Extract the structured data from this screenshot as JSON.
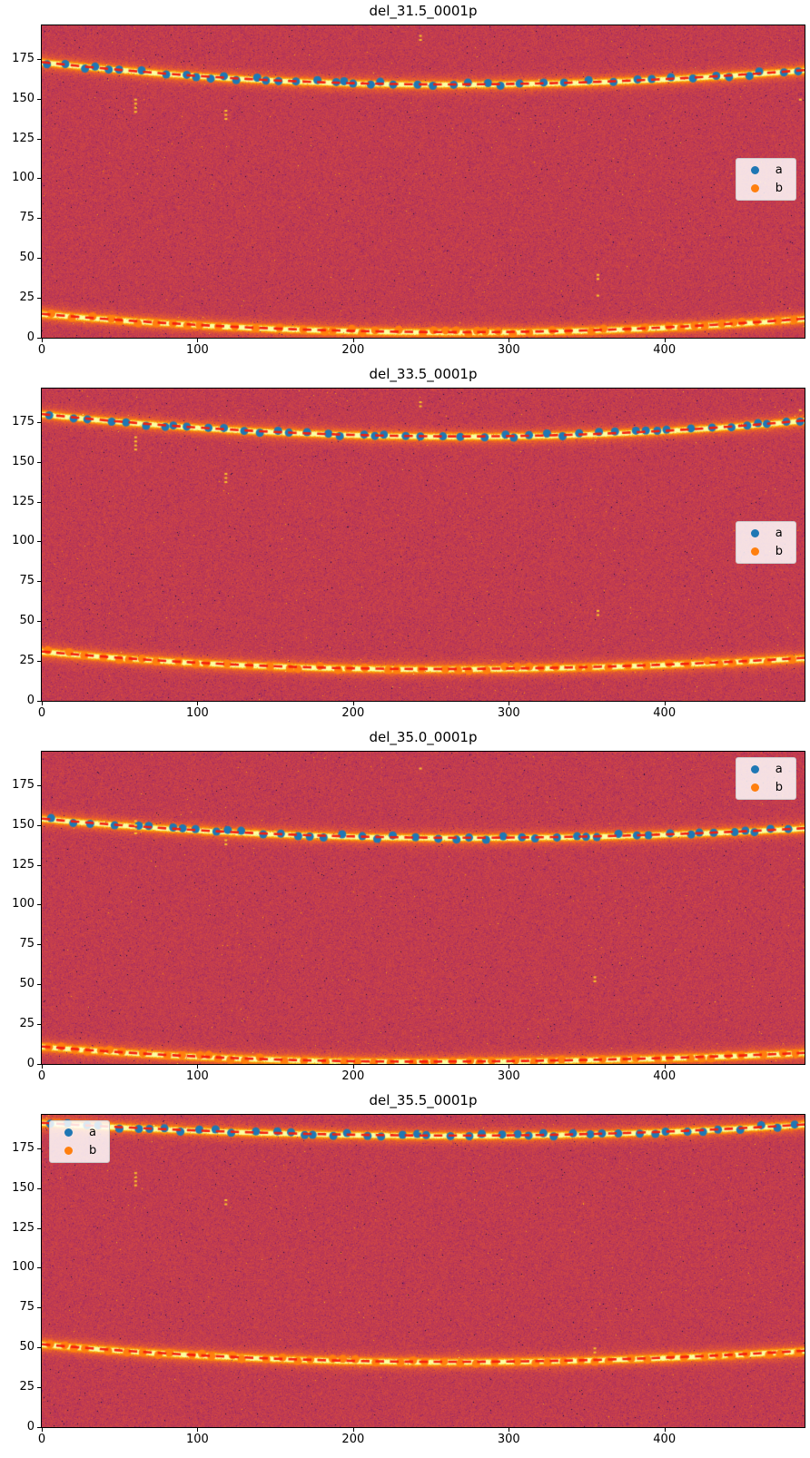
{
  "page": {
    "background": "#ffffff"
  },
  "colors": {
    "series_a": "#1f77b4",
    "series_b": "#ff7f0e",
    "dash_line": "#f41e0e",
    "background_base_inferno_t": 0.52,
    "background_base": "#bc3754",
    "hot_pixel": "#fcc32a",
    "legend_bg": "rgba(255,255,255,0.84)",
    "legend_border": "#cccccc",
    "axis_color": "#000000"
  },
  "legend": {
    "entries": [
      {
        "label": "a",
        "color": "#1f77b4"
      },
      {
        "label": "b",
        "color": "#ff7f0e"
      }
    ]
  },
  "chart_data": {
    "type": "scatter",
    "xlim": [
      0,
      490
    ],
    "ylim": [
      0,
      196
    ],
    "x_ticks": [
      "0",
      "100",
      "200",
      "300",
      "400"
    ],
    "x_tick_values": [
      0,
      100,
      200,
      300,
      400
    ],
    "y_ticks": [
      "0",
      "25",
      "50",
      "75",
      "100",
      "125",
      "150",
      "175"
    ],
    "y_tick_values": [
      0,
      25,
      50,
      75,
      100,
      125,
      150,
      175
    ],
    "grid": false,
    "scatter": {
      "x_start": 3,
      "x_end": 488,
      "step_min": 5,
      "step_max": 16,
      "y_jitter": 1.3,
      "radius": 4.5
    },
    "plots": [
      {
        "title": "del_31.5_0001p",
        "legend_loc": "right",
        "seed": 11,
        "series": [
          {
            "name": "a",
            "color": "#1f77b4",
            "curve": {
              "left": 173,
              "vertex_x": 260,
              "vertex_y": 159,
              "right": 168
            }
          },
          {
            "name": "b",
            "color": "#ff7f0e",
            "curve": {
              "left": 15,
              "vertex_x": 270,
              "vertex_y": 3.5,
              "right": 12
            }
          }
        ],
        "hot_spots": [
          [
            60,
            150,
            4
          ],
          [
            118,
            143,
            3
          ],
          [
            243,
            190,
            2
          ],
          [
            357,
            40,
            2
          ],
          [
            357,
            27,
            1
          ],
          [
            487,
            150,
            1
          ]
        ]
      },
      {
        "title": "del_33.5_0001p",
        "legend_loc": "right",
        "seed": 22,
        "series": [
          {
            "name": "a",
            "color": "#1f77b4",
            "curve": {
              "left": 180,
              "vertex_x": 270,
              "vertex_y": 166,
              "right": 176
            }
          },
          {
            "name": "b",
            "color": "#ff7f0e",
            "curve": {
              "left": 31,
              "vertex_x": 250,
              "vertex_y": 20,
              "right": 27
            }
          }
        ],
        "hot_spots": [
          [
            60,
            166,
            4
          ],
          [
            118,
            143,
            3
          ],
          [
            243,
            188,
            2
          ],
          [
            357,
            57,
            2
          ],
          [
            487,
            183,
            1
          ]
        ]
      },
      {
        "title": "del_35.0_0001p",
        "legend_loc": "upper-right",
        "seed": 33,
        "series": [
          {
            "name": "a",
            "color": "#1f77b4",
            "curve": {
              "left": 154,
              "vertex_x": 270,
              "vertex_y": 142,
              "right": 148
            }
          },
          {
            "name": "b",
            "color": "#ff7f0e",
            "curve": {
              "left": 11,
              "vertex_x": 240,
              "vertex_y": 1.5,
              "right": 7
            }
          }
        ],
        "hot_spots": [
          [
            60,
            153,
            4
          ],
          [
            118,
            141,
            2
          ],
          [
            355,
            55,
            2
          ],
          [
            243,
            186,
            1
          ]
        ]
      },
      {
        "title": "del_35.5_0001p",
        "legend_loc": "upper-left",
        "seed": 44,
        "series": [
          {
            "name": "a",
            "color": "#1f77b4",
            "curve": {
              "left": 191,
              "vertex_x": 270,
              "vertex_y": 183,
              "right": 190
            }
          },
          {
            "name": "b",
            "color": "#ff7f0e",
            "curve": {
              "left": 52,
              "vertex_x": 260,
              "vertex_y": 41,
              "right": 48
            }
          }
        ],
        "hot_spots": [
          [
            60,
            160,
            4
          ],
          [
            118,
            143,
            2
          ],
          [
            243,
            186,
            1
          ],
          [
            355,
            50,
            2
          ]
        ]
      }
    ]
  }
}
